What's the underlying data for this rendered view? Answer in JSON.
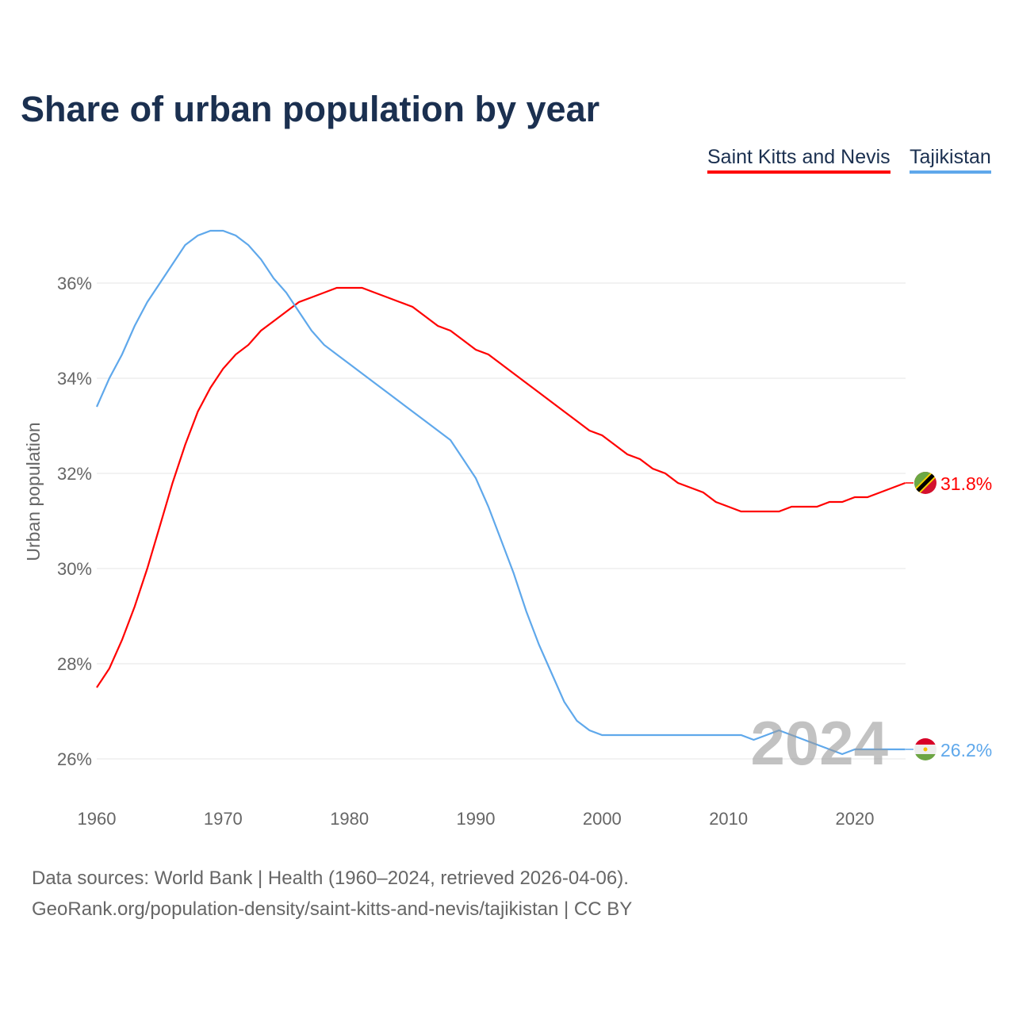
{
  "title": "Share of urban population by year",
  "footer": {
    "line1": "Data sources: World Bank | Health (1960–2024, retrieved 2026-04-06).",
    "line2": "GeoRank.org/population-density/saint-kitts-and-nevis/tajikistan | CC BY"
  },
  "chart_data": {
    "type": "line",
    "title": "Share of urban population by year",
    "xlabel": "",
    "ylabel": "Urban population",
    "xlim": [
      1960,
      2024
    ],
    "ylim": [
      25.3,
      37.5
    ],
    "xticks": [
      1960,
      1970,
      1980,
      1990,
      2000,
      2010,
      2020
    ],
    "yticks": [
      26,
      28,
      30,
      32,
      34,
      36
    ],
    "ytick_labels": [
      "26%",
      "28%",
      "30%",
      "32%",
      "34%",
      "36%"
    ],
    "year_label": "2024",
    "grid": true,
    "legend": "top-right",
    "x_start": 1960,
    "series": [
      {
        "name": "Saint Kitts and Nevis",
        "color": "#ff0000",
        "end_label": "31.8%",
        "icon": "flag-saint-kitts-and-nevis",
        "values": [
          27.5,
          27.9,
          28.5,
          29.2,
          30.0,
          30.9,
          31.8,
          32.6,
          33.3,
          33.8,
          34.2,
          34.5,
          34.7,
          35.0,
          35.2,
          35.4,
          35.6,
          35.7,
          35.8,
          35.9,
          35.9,
          35.9,
          35.8,
          35.7,
          35.6,
          35.5,
          35.3,
          35.1,
          35.0,
          34.8,
          34.6,
          34.5,
          34.3,
          34.1,
          33.9,
          33.7,
          33.5,
          33.3,
          33.1,
          32.9,
          32.8,
          32.6,
          32.4,
          32.3,
          32.1,
          32.0,
          31.8,
          31.7,
          31.6,
          31.4,
          31.3,
          31.2,
          31.2,
          31.2,
          31.2,
          31.3,
          31.3,
          31.3,
          31.4,
          31.4,
          31.5,
          31.5,
          31.6,
          31.7,
          31.8
        ]
      },
      {
        "name": "Tajikistan",
        "color": "#5fa8eb",
        "end_label": "26.2%",
        "icon": "flag-tajikistan",
        "values": [
          33.4,
          34.0,
          34.5,
          35.1,
          35.6,
          36.0,
          36.4,
          36.8,
          37.0,
          37.1,
          37.1,
          37.0,
          36.8,
          36.5,
          36.1,
          35.8,
          35.4,
          35.0,
          34.7,
          34.5,
          34.3,
          34.1,
          33.9,
          33.7,
          33.5,
          33.3,
          33.1,
          32.9,
          32.7,
          32.3,
          31.9,
          31.3,
          30.6,
          29.9,
          29.1,
          28.4,
          27.8,
          27.2,
          26.8,
          26.6,
          26.5,
          26.5,
          26.5,
          26.5,
          26.5,
          26.5,
          26.5,
          26.5,
          26.5,
          26.5,
          26.5,
          26.5,
          26.4,
          26.5,
          26.6,
          26.5,
          26.4,
          26.3,
          26.2,
          26.1,
          26.2,
          26.2,
          26.2,
          26.2,
          26.2
        ]
      }
    ]
  }
}
